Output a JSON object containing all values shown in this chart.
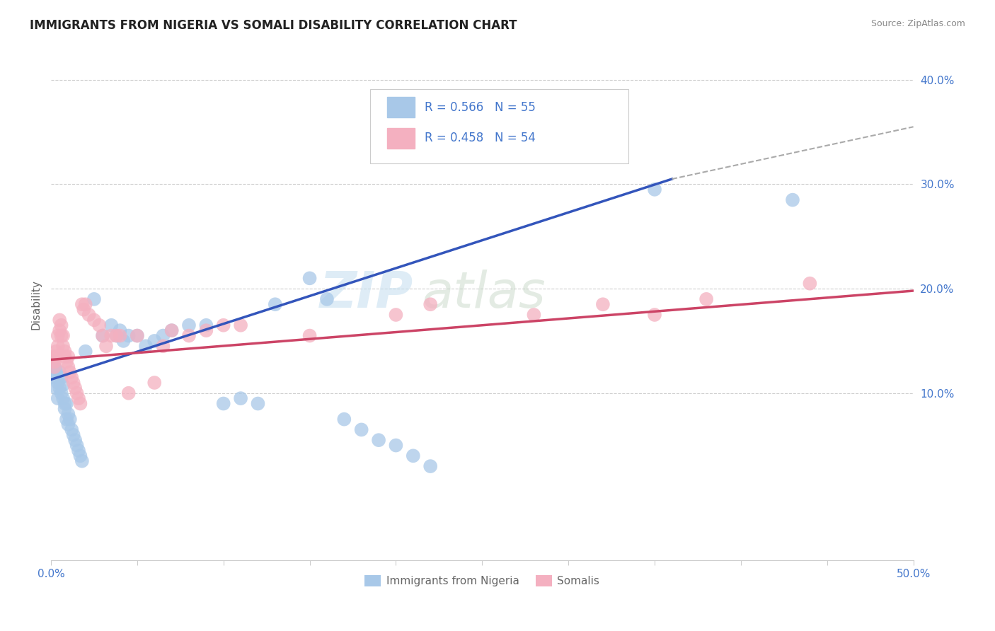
{
  "title": "IMMIGRANTS FROM NIGERIA VS SOMALI DISABILITY CORRELATION CHART",
  "source": "Source: ZipAtlas.com",
  "ylabel": "Disability",
  "legend_bottom": [
    "Immigrants from Nigeria",
    "Somalis"
  ],
  "watermark_zip": "ZIP",
  "watermark_atlas": "atlas",
  "nigeria_color": "#a8c8e8",
  "somali_color": "#f4b0c0",
  "nigeria_line_color": "#3355bb",
  "somali_line_color": "#cc4466",
  "trendline_extension_color": "#aaaaaa",
  "xlim": [
    0.0,
    0.5
  ],
  "ylim": [
    -0.06,
    0.43
  ],
  "yticks": [
    0.1,
    0.2,
    0.3,
    0.4
  ],
  "ytick_labels": [
    "10.0%",
    "20.0%",
    "30.0%",
    "40.0%"
  ],
  "xticks": [
    0.0,
    0.05,
    0.1,
    0.15,
    0.2,
    0.25,
    0.3,
    0.35,
    0.4,
    0.45,
    0.5
  ],
  "grid_color": "#cccccc",
  "nigeria_scatter": [
    [
      0.001,
      0.13
    ],
    [
      0.002,
      0.125
    ],
    [
      0.002,
      0.115
    ],
    [
      0.003,
      0.12
    ],
    [
      0.003,
      0.105
    ],
    [
      0.004,
      0.11
    ],
    [
      0.004,
      0.095
    ],
    [
      0.005,
      0.12
    ],
    [
      0.005,
      0.105
    ],
    [
      0.006,
      0.115
    ],
    [
      0.006,
      0.1
    ],
    [
      0.007,
      0.108
    ],
    [
      0.007,
      0.095
    ],
    [
      0.008,
      0.09
    ],
    [
      0.008,
      0.085
    ],
    [
      0.009,
      0.09
    ],
    [
      0.009,
      0.075
    ],
    [
      0.01,
      0.08
    ],
    [
      0.01,
      0.07
    ],
    [
      0.011,
      0.075
    ],
    [
      0.012,
      0.065
    ],
    [
      0.013,
      0.06
    ],
    [
      0.014,
      0.055
    ],
    [
      0.015,
      0.05
    ],
    [
      0.016,
      0.045
    ],
    [
      0.017,
      0.04
    ],
    [
      0.018,
      0.035
    ],
    [
      0.02,
      0.14
    ],
    [
      0.025,
      0.19
    ],
    [
      0.03,
      0.155
    ],
    [
      0.035,
      0.165
    ],
    [
      0.038,
      0.155
    ],
    [
      0.04,
      0.16
    ],
    [
      0.042,
      0.15
    ],
    [
      0.045,
      0.155
    ],
    [
      0.05,
      0.155
    ],
    [
      0.055,
      0.145
    ],
    [
      0.06,
      0.15
    ],
    [
      0.065,
      0.155
    ],
    [
      0.07,
      0.16
    ],
    [
      0.08,
      0.165
    ],
    [
      0.09,
      0.165
    ],
    [
      0.1,
      0.09
    ],
    [
      0.11,
      0.095
    ],
    [
      0.12,
      0.09
    ],
    [
      0.13,
      0.185
    ],
    [
      0.15,
      0.21
    ],
    [
      0.16,
      0.19
    ],
    [
      0.17,
      0.075
    ],
    [
      0.18,
      0.065
    ],
    [
      0.19,
      0.055
    ],
    [
      0.2,
      0.05
    ],
    [
      0.21,
      0.04
    ],
    [
      0.22,
      0.03
    ],
    [
      0.35,
      0.295
    ],
    [
      0.43,
      0.285
    ]
  ],
  "somali_scatter": [
    [
      0.001,
      0.135
    ],
    [
      0.002,
      0.13
    ],
    [
      0.002,
      0.125
    ],
    [
      0.003,
      0.14
    ],
    [
      0.003,
      0.135
    ],
    [
      0.004,
      0.145
    ],
    [
      0.004,
      0.155
    ],
    [
      0.005,
      0.16
    ],
    [
      0.005,
      0.17
    ],
    [
      0.006,
      0.155
    ],
    [
      0.006,
      0.165
    ],
    [
      0.007,
      0.155
    ],
    [
      0.007,
      0.145
    ],
    [
      0.008,
      0.14
    ],
    [
      0.008,
      0.135
    ],
    [
      0.009,
      0.13
    ],
    [
      0.01,
      0.135
    ],
    [
      0.01,
      0.125
    ],
    [
      0.011,
      0.12
    ],
    [
      0.012,
      0.115
    ],
    [
      0.013,
      0.11
    ],
    [
      0.014,
      0.105
    ],
    [
      0.015,
      0.1
    ],
    [
      0.016,
      0.095
    ],
    [
      0.017,
      0.09
    ],
    [
      0.018,
      0.185
    ],
    [
      0.019,
      0.18
    ],
    [
      0.02,
      0.185
    ],
    [
      0.022,
      0.175
    ],
    [
      0.025,
      0.17
    ],
    [
      0.028,
      0.165
    ],
    [
      0.03,
      0.155
    ],
    [
      0.032,
      0.145
    ],
    [
      0.035,
      0.155
    ],
    [
      0.038,
      0.155
    ],
    [
      0.04,
      0.155
    ],
    [
      0.045,
      0.1
    ],
    [
      0.05,
      0.155
    ],
    [
      0.06,
      0.11
    ],
    [
      0.065,
      0.145
    ],
    [
      0.07,
      0.16
    ],
    [
      0.08,
      0.155
    ],
    [
      0.09,
      0.16
    ],
    [
      0.1,
      0.165
    ],
    [
      0.11,
      0.165
    ],
    [
      0.15,
      0.155
    ],
    [
      0.2,
      0.175
    ],
    [
      0.22,
      0.185
    ],
    [
      0.28,
      0.175
    ],
    [
      0.32,
      0.185
    ],
    [
      0.35,
      0.175
    ],
    [
      0.38,
      0.19
    ],
    [
      0.44,
      0.205
    ]
  ],
  "nigeria_line": {
    "x0": 0.0,
    "y0": 0.113,
    "x1": 0.36,
    "y1": 0.305
  },
  "somali_line": {
    "x0": 0.0,
    "y0": 0.132,
    "x1": 0.5,
    "y1": 0.198
  },
  "extension_line": {
    "x0": 0.36,
    "y0": 0.305,
    "x1": 0.5,
    "y1": 0.355
  }
}
